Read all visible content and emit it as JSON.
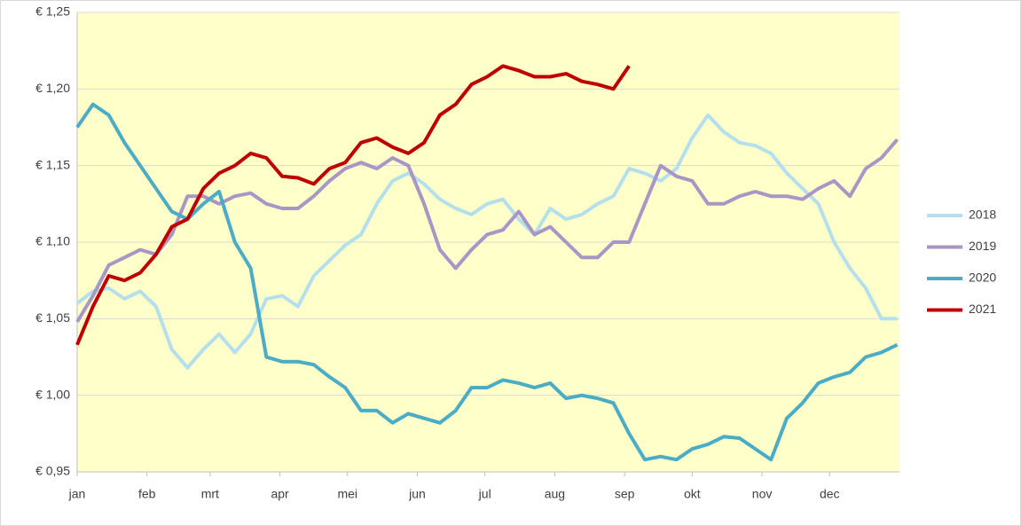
{
  "chart_data": {
    "type": "line",
    "x": [
      0,
      7,
      14,
      21,
      28,
      35,
      42,
      49,
      56,
      63,
      70,
      77,
      84,
      91,
      98,
      105,
      112,
      119,
      126,
      133,
      140,
      147,
      154,
      161,
      168,
      175,
      182,
      189,
      196,
      203,
      210,
      217,
      224,
      231,
      238,
      245,
      252,
      259,
      266,
      273,
      280,
      287,
      294,
      301,
      308,
      315,
      322,
      329,
      336,
      343,
      350,
      357,
      364
    ],
    "xlim": [
      0,
      365
    ],
    "xticks": [
      {
        "value": 0,
        "label": "jan"
      },
      {
        "value": 31,
        "label": "feb"
      },
      {
        "value": 59,
        "label": "mrt"
      },
      {
        "value": 90,
        "label": "apr"
      },
      {
        "value": 120,
        "label": "mei"
      },
      {
        "value": 151,
        "label": "jun"
      },
      {
        "value": 181,
        "label": "jul"
      },
      {
        "value": 212,
        "label": "aug"
      },
      {
        "value": 243,
        "label": "sep"
      },
      {
        "value": 273,
        "label": "okt"
      },
      {
        "value": 304,
        "label": "nov"
      },
      {
        "value": 334,
        "label": "dec"
      }
    ],
    "ylim": [
      0.95,
      1.25
    ],
    "yticks": [
      {
        "value": 0.95,
        "label": "€ 0,95"
      },
      {
        "value": 1.0,
        "label": "€ 1,00"
      },
      {
        "value": 1.05,
        "label": "€ 1,05"
      },
      {
        "value": 1.1,
        "label": "€ 1,10"
      },
      {
        "value": 1.15,
        "label": "€ 1,15"
      },
      {
        "value": 1.2,
        "label": "€ 1,20"
      },
      {
        "value": 1.25,
        "label": "€ 1,25"
      }
    ],
    "grid": true,
    "legend": "right",
    "series": [
      {
        "name": "2018",
        "color": "#b4dfec",
        "values": [
          1.06,
          1.068,
          1.07,
          1.063,
          1.068,
          1.058,
          1.03,
          1.018,
          1.03,
          1.04,
          1.028,
          1.04,
          1.063,
          1.065,
          1.058,
          1.078,
          1.088,
          1.098,
          1.105,
          1.125,
          1.14,
          1.145,
          1.138,
          1.128,
          1.122,
          1.118,
          1.125,
          1.128,
          1.115,
          1.105,
          1.122,
          1.115,
          1.118,
          1.125,
          1.13,
          1.148,
          1.145,
          1.14,
          1.148,
          1.168,
          1.183,
          1.172,
          1.165,
          1.163,
          1.158,
          1.145,
          1.135,
          1.125,
          1.1,
          1.083,
          1.07,
          1.05,
          1.05
        ]
      },
      {
        "name": "2019",
        "color": "#a996c6",
        "values": [
          1.048,
          1.065,
          1.085,
          1.09,
          1.095,
          1.092,
          1.105,
          1.13,
          1.13,
          1.125,
          1.13,
          1.132,
          1.125,
          1.122,
          1.122,
          1.13,
          1.14,
          1.148,
          1.152,
          1.148,
          1.155,
          1.15,
          1.125,
          1.095,
          1.083,
          1.095,
          1.105,
          1.108,
          1.12,
          1.105,
          1.11,
          1.1,
          1.09,
          1.09,
          1.1,
          1.1,
          1.125,
          1.15,
          1.143,
          1.14,
          1.125,
          1.125,
          1.13,
          1.133,
          1.13,
          1.13,
          1.128,
          1.135,
          1.14,
          1.13,
          1.148,
          1.155,
          1.167
        ]
      },
      {
        "name": "2020",
        "color": "#4bacc6",
        "values": [
          1.175,
          1.19,
          1.183,
          1.165,
          1.15,
          1.135,
          1.12,
          1.115,
          1.125,
          1.133,
          1.1,
          1.083,
          1.025,
          1.022,
          1.022,
          1.02,
          1.012,
          1.005,
          0.99,
          0.99,
          0.982,
          0.988,
          0.985,
          0.982,
          0.99,
          1.005,
          1.005,
          1.01,
          1.008,
          1.005,
          1.008,
          0.998,
          1.0,
          0.998,
          0.995,
          0.975,
          0.958,
          0.96,
          0.958,
          0.965,
          0.968,
          0.973,
          0.972,
          0.965,
          0.958,
          0.985,
          0.995,
          1.008,
          1.012,
          1.015,
          1.025,
          1.028,
          1.033
        ]
      },
      {
        "name": "2021",
        "color": "#c00000",
        "values": [
          1.033,
          1.058,
          1.078,
          1.075,
          1.08,
          1.092,
          1.11,
          1.115,
          1.135,
          1.145,
          1.15,
          1.158,
          1.155,
          1.143,
          1.142,
          1.138,
          1.148,
          1.152,
          1.165,
          1.168,
          1.162,
          1.158,
          1.165,
          1.183,
          1.19,
          1.203,
          1.208,
          1.215,
          1.212,
          1.208,
          1.208,
          1.21,
          1.205,
          1.203,
          1.2,
          1.215,
          null,
          null,
          null,
          null,
          null,
          null,
          null,
          null,
          null,
          null,
          null,
          null,
          null,
          null,
          null,
          null,
          null
        ]
      }
    ]
  }
}
